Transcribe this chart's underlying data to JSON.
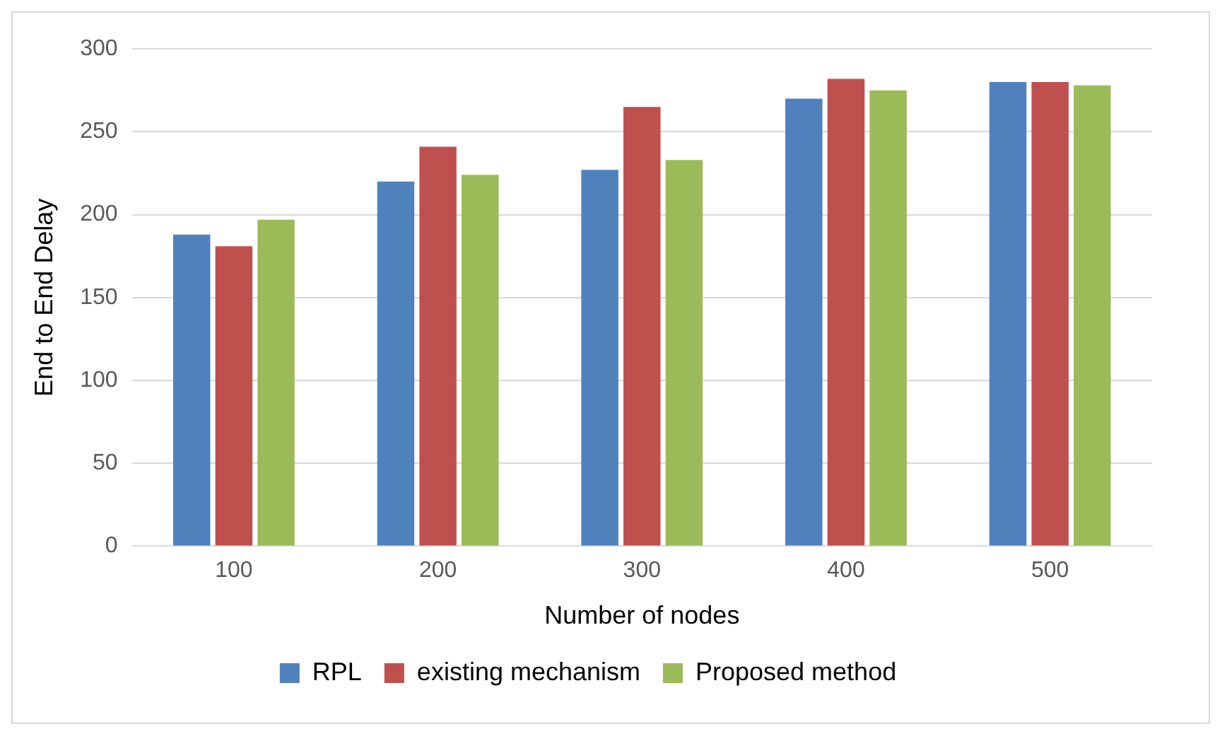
{
  "chart_data": {
    "type": "bar",
    "xlabel": "Number of nodes",
    "ylabel": "End to End Delay",
    "categories": [
      "100",
      "200",
      "300",
      "400",
      "500"
    ],
    "series": [
      {
        "name": "RPL",
        "color": "#4f81bd",
        "values": [
          188,
          220,
          227,
          270,
          280
        ]
      },
      {
        "name": "existing mechanism",
        "color": "#c0504d",
        "values": [
          181,
          241,
          265,
          282,
          280
        ]
      },
      {
        "name": "Proposed method",
        "color": "#9bbb59",
        "values": [
          197,
          224,
          233,
          275,
          278
        ]
      }
    ],
    "ylim": [
      0,
      300
    ],
    "yticks": [
      0,
      50,
      100,
      150,
      200,
      250,
      300
    ],
    "grid": "y",
    "legend": "bottom"
  }
}
